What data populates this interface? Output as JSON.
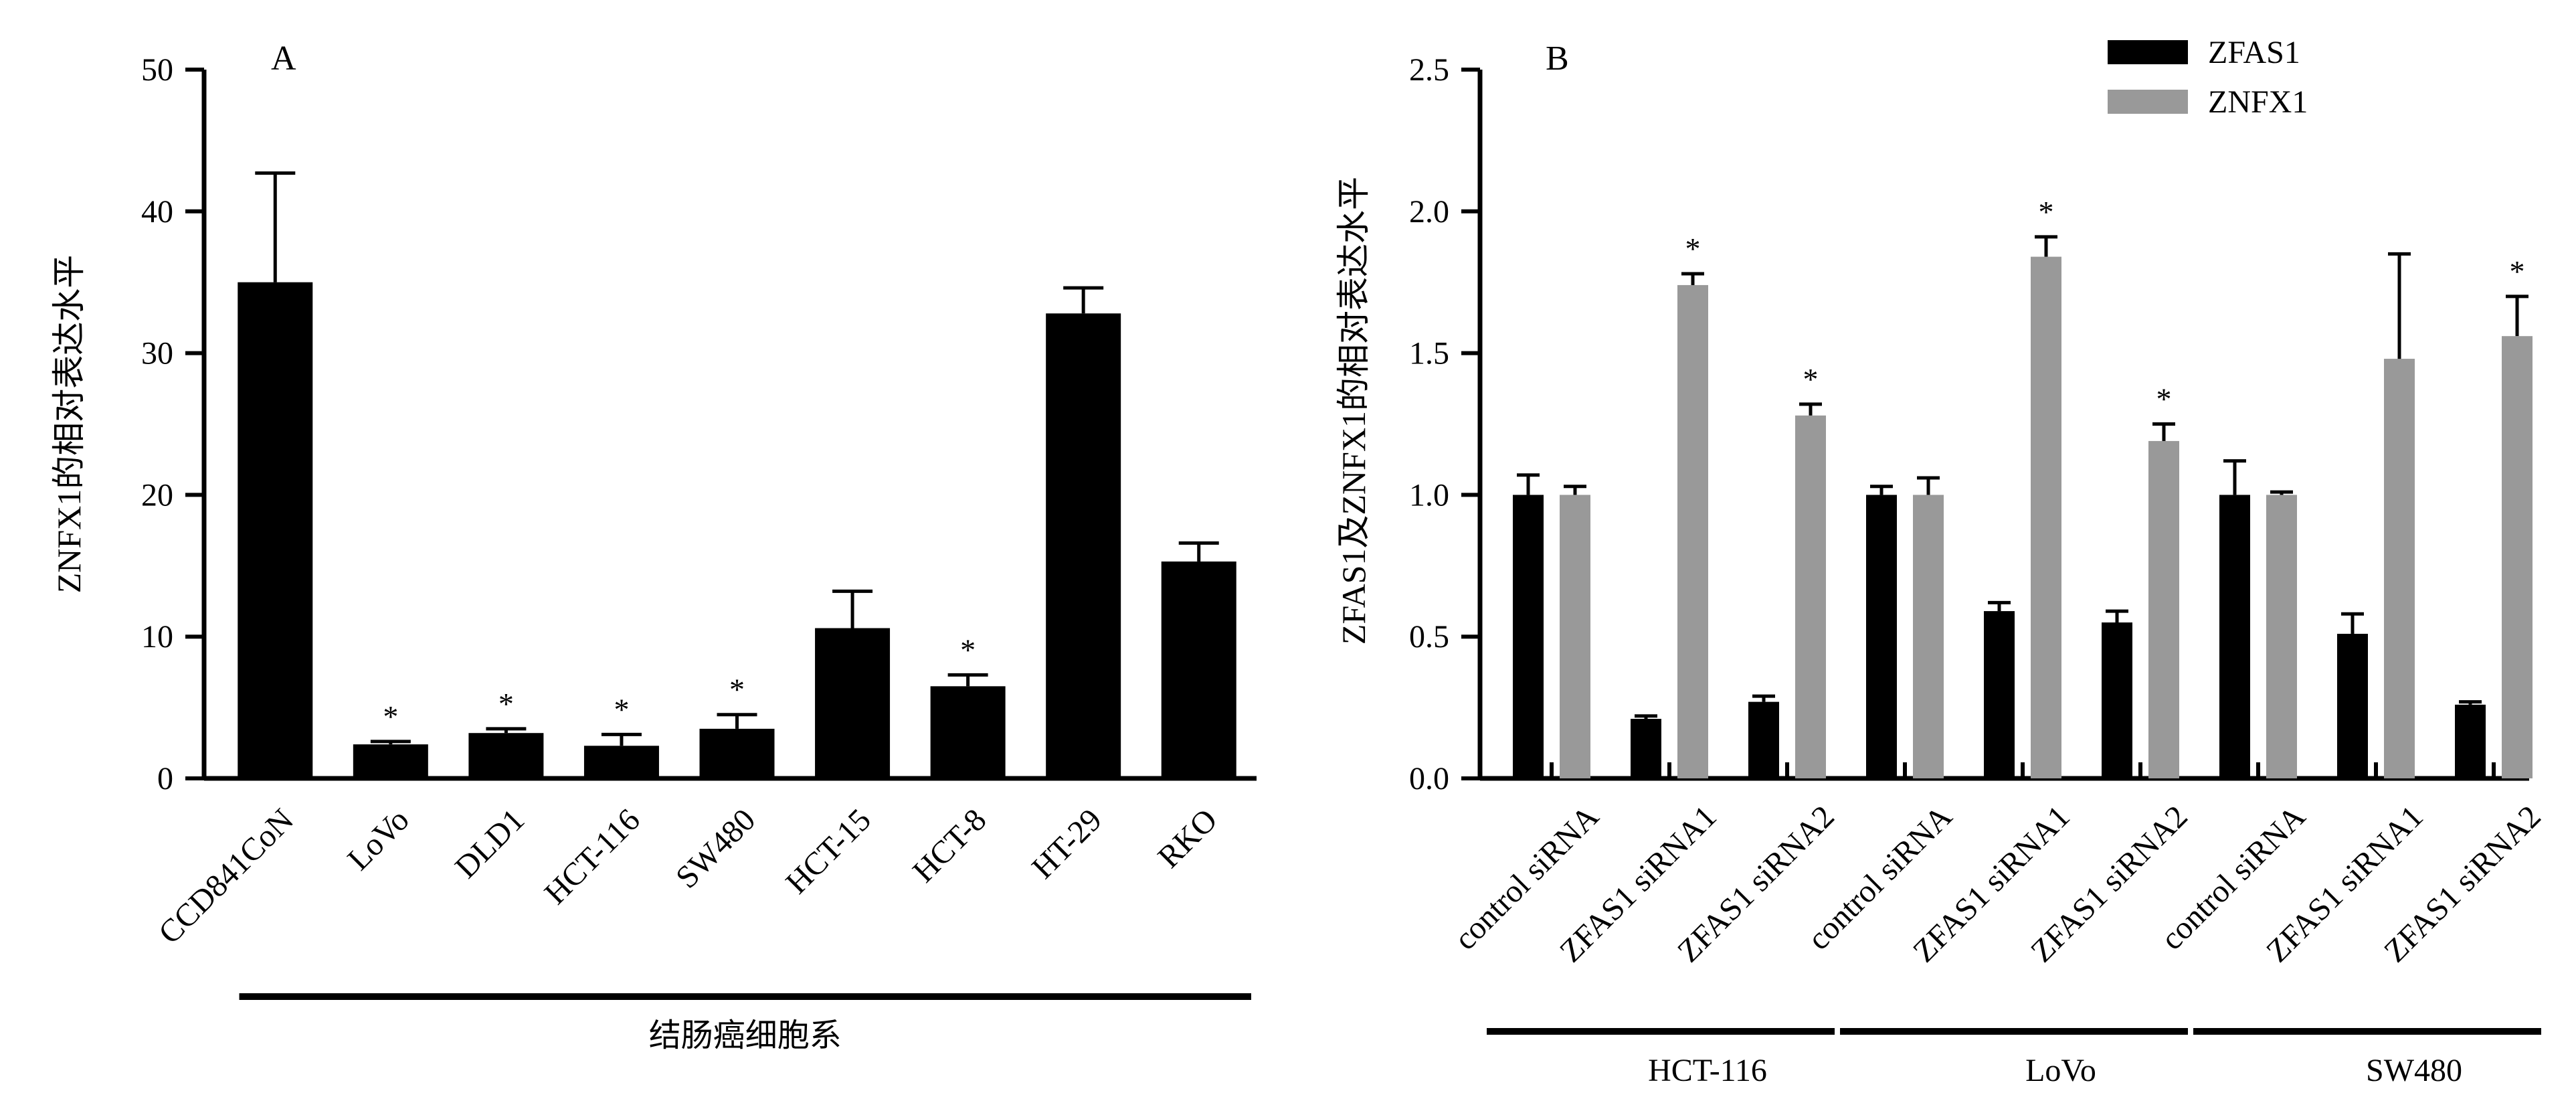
{
  "chart_data": [
    {
      "type": "bar",
      "panel_label": "A",
      "ylabel": "ZNFX1的相对表达水平",
      "xlabel": "",
      "ylim": [
        0,
        50
      ],
      "yticks": [
        "0",
        "10",
        "20",
        "30",
        "40",
        "50"
      ],
      "categories": [
        "CCD841CoN",
        "LoVo",
        "DLD1",
        "HCT-116",
        "SW480",
        "HCT-15",
        "HCT-8",
        "HT-29",
        "RKO"
      ],
      "values": [
        35.0,
        2.4,
        3.2,
        2.3,
        3.5,
        10.6,
        6.5,
        32.8,
        15.3
      ],
      "errors": [
        7.7,
        0.2,
        0.3,
        0.8,
        1.0,
        2.6,
        0.8,
        1.8,
        1.3
      ],
      "significance": [
        "",
        "*",
        "*",
        "*",
        "*",
        "",
        "*",
        "",
        ""
      ],
      "group_label": "结肠癌细胞系",
      "group_span": [
        1,
        8
      ],
      "color": "#000000"
    },
    {
      "type": "bar",
      "panel_label": "B",
      "ylabel": "ZFAS1及ZNFX1的相对表达水平",
      "xlabel": "",
      "ylim": [
        0,
        2.5
      ],
      "yticks": [
        "0.0",
        "0.5",
        "1.0",
        "1.5",
        "2.0",
        "2.5"
      ],
      "categories": [
        "control siRNA",
        "ZFAS1 siRNA1",
        "ZFAS1 siRNA2",
        "control siRNA",
        "ZFAS1 siRNA1",
        "ZFAS1 siRNA2",
        "control siRNA",
        "ZFAS1 siRNA1",
        "ZFAS1 siRNA2"
      ],
      "groups": [
        {
          "label": "HCT-116",
          "span": [
            0,
            2
          ]
        },
        {
          "label": "LoVo",
          "span": [
            3,
            5
          ]
        },
        {
          "label": "SW480",
          "span": [
            6,
            8
          ]
        }
      ],
      "legend_position": "top-right",
      "series": [
        {
          "name": "ZFAS1",
          "color": "#000000",
          "values": [
            1.0,
            0.21,
            0.27,
            1.0,
            0.59,
            0.55,
            1.0,
            0.51,
            0.26
          ],
          "errors": [
            0.07,
            0.01,
            0.02,
            0.03,
            0.03,
            0.04,
            0.12,
            0.07,
            0.01
          ],
          "significance": [
            "",
            "",
            "",
            "",
            "",
            "",
            "",
            "",
            ""
          ]
        },
        {
          "name": "ZNFX1",
          "color": "#999999",
          "values": [
            1.0,
            1.74,
            1.28,
            1.0,
            1.84,
            1.19,
            1.0,
            1.48,
            1.56
          ],
          "errors": [
            0.03,
            0.04,
            0.04,
            0.06,
            0.07,
            0.06,
            0.01,
            0.37,
            0.14
          ],
          "significance": [
            "",
            "*",
            "*",
            "",
            "*",
            "*",
            "",
            "",
            "*"
          ]
        }
      ]
    }
  ]
}
